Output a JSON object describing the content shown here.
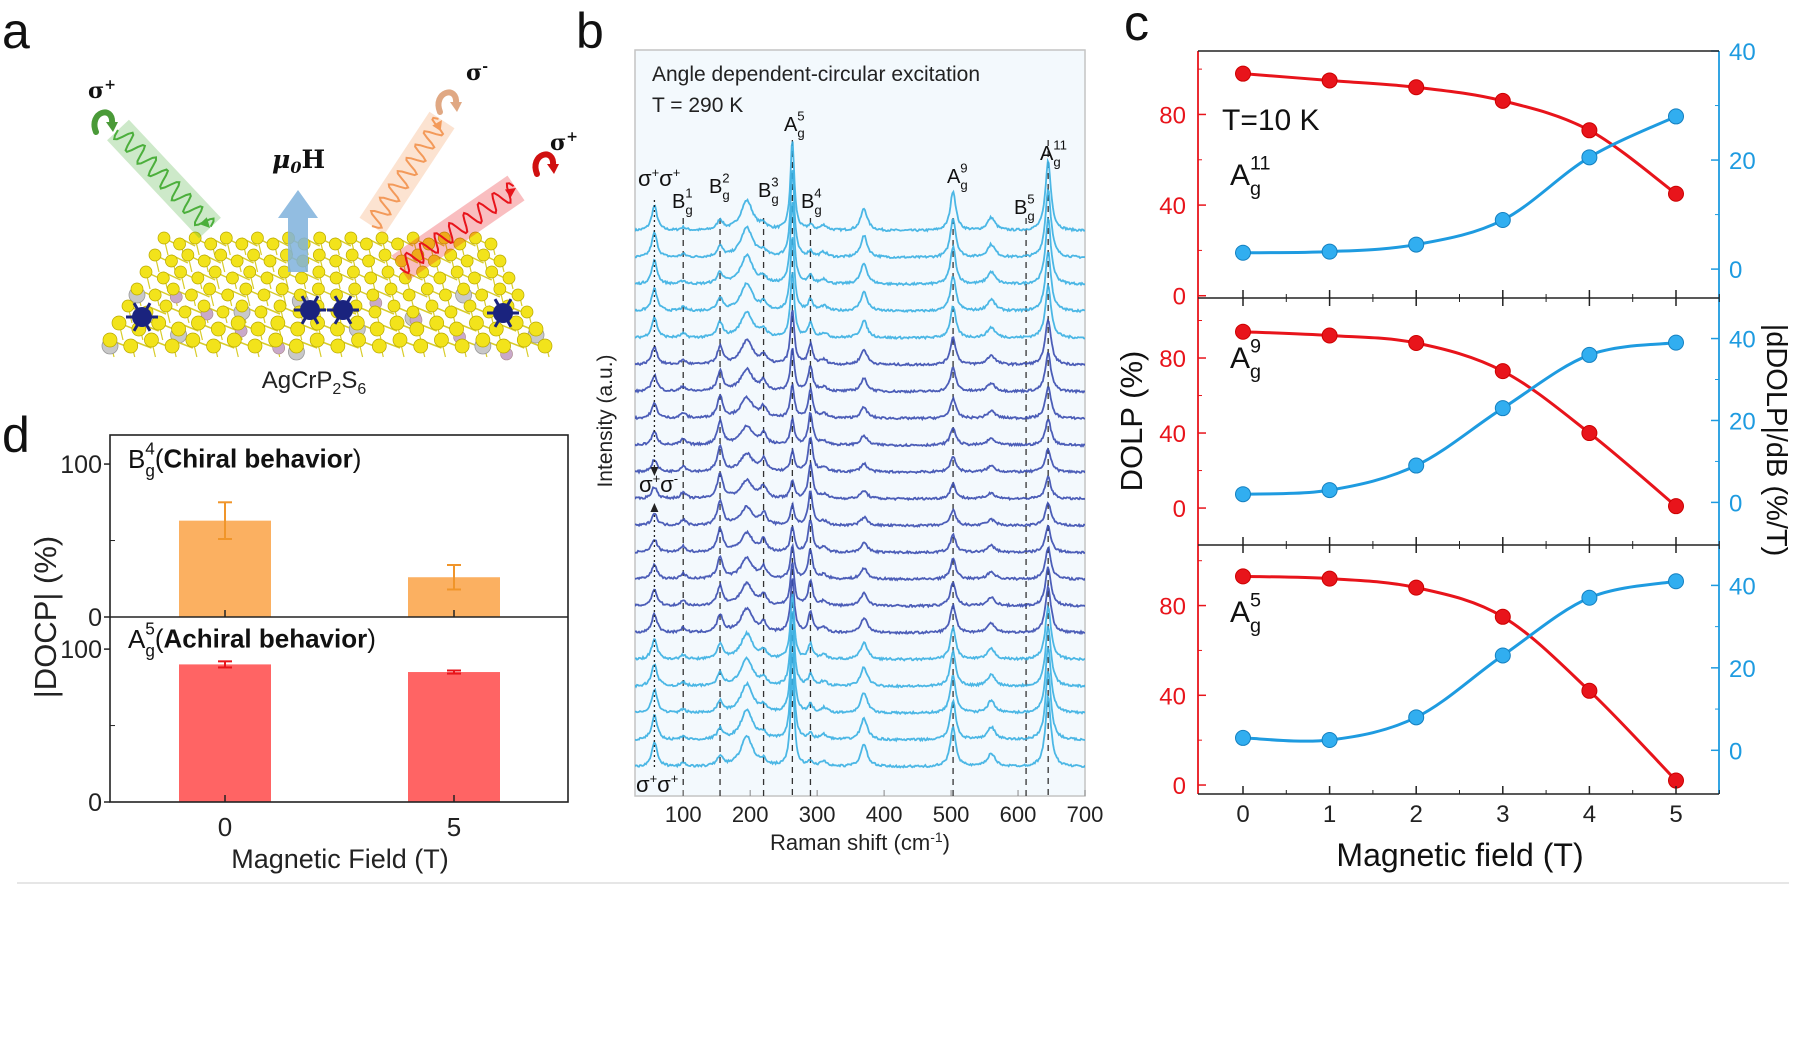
{
  "panel_labels": {
    "a": "a",
    "b": "b",
    "c": "c",
    "d": "d"
  },
  "panel_a": {
    "formula": [
      {
        "t": "AgCrP"
      },
      {
        "t": "2",
        "sub": true
      },
      {
        "t": "S"
      },
      {
        "t": "6",
        "sub": true
      }
    ],
    "field_label": {
      "mu": "μ",
      "sub": "0",
      "H": "H"
    },
    "beams": [
      {
        "label": "σ",
        "sup": "+",
        "color": "#4caf3c"
      },
      {
        "label": "σ",
        "sup": "-",
        "color": "#f39a5a"
      },
      {
        "label": "σ",
        "sup": "+",
        "color": "#e8141b"
      }
    ],
    "atom_colors": {
      "S": "#f2e31b",
      "Cr": "#1a237e",
      "Ag": "#c8c8c8",
      "P": "#c9a9c9"
    }
  },
  "chart_data": [
    {
      "id": "b",
      "type": "line",
      "title": "",
      "annotation": [
        "Angle dependent-circular excitation",
        "T = 290 K"
      ],
      "xlabel": "Raman shift (cm",
      "xlabel_sup": "-1",
      "xlabel_end": ")",
      "ylabel": "Intensity (a.u.)",
      "xlim": [
        28,
        700
      ],
      "xticks": [
        100,
        200,
        300,
        400,
        500,
        600,
        700
      ],
      "trace_count": 21,
      "polarization_labels": {
        "top": {
          "a": "σ",
          "sa": "+",
          "b": "σ",
          "sb": "+"
        },
        "middle": {
          "a": "σ",
          "sa": "+",
          "b": "σ",
          "sb": "-"
        },
        "bottom": {
          "a": "σ",
          "sa": "+",
          "b": "σ",
          "sb": "+"
        }
      },
      "peaks": [
        {
          "base": "B",
          "sub": "g",
          "sup": "1",
          "x": 100
        },
        {
          "base": "B",
          "sub": "g",
          "sup": "2",
          "x": 155
        },
        {
          "base": "B",
          "sub": "g",
          "sup": "3",
          "x": 220
        },
        {
          "base": "A",
          "sub": "g",
          "sup": "5",
          "x": 263
        },
        {
          "base": "B",
          "sub": "g",
          "sup": "4",
          "x": 290
        },
        {
          "base": "A",
          "sub": "g",
          "sup": "9",
          "x": 503
        },
        {
          "base": "B",
          "sub": "g",
          "sup": "5",
          "x": 612
        },
        {
          "base": "A",
          "sub": "g",
          "sup": "11",
          "x": 645
        }
      ],
      "colors": {
        "co_circular": "#38afe2",
        "cross_circular": "#3a4cb0"
      }
    },
    {
      "id": "c",
      "type": "line",
      "title": "",
      "annotation": "T=10 K",
      "xlabel": "Magnetic field (T)",
      "ylabel_left": "DOLP (%)",
      "ylabel_right": "|dDOLP|/dB (%/T)",
      "x": [
        0,
        1,
        2,
        3,
        4,
        5
      ],
      "colors": {
        "left": "#e8141b",
        "right": "#1e9be0"
      },
      "panels": [
        {
          "mode": {
            "base": "A",
            "sub": "g",
            "sup": "11"
          },
          "ylim_left": [
            -1,
            108
          ],
          "yticks_left": [
            0,
            40,
            80
          ],
          "ylim_right": [
            -5.3,
            40
          ],
          "yticks_right": [
            0,
            20,
            40
          ],
          "dolp": [
            98,
            95,
            92,
            86,
            73,
            45
          ],
          "ddolp": [
            3,
            3.2,
            4.5,
            9,
            20.5,
            28
          ]
        },
        {
          "mode": {
            "base": "A",
            "sub": "g",
            "sup": "9"
          },
          "ylim_left": [
            -19.7,
            112
          ],
          "yticks_left": [
            0,
            40,
            80
          ],
          "ylim_right": [
            -10.4,
            49.9
          ],
          "yticks_right": [
            0,
            20,
            40
          ],
          "dolp": [
            94,
            92,
            88,
            73,
            40,
            1
          ],
          "ddolp": [
            2,
            3,
            9,
            23,
            36,
            39
          ]
        },
        {
          "mode": {
            "base": "A",
            "sub": "g",
            "sup": "5"
          },
          "ylim_left": [
            -4,
            107
          ],
          "yticks_left": [
            0,
            40,
            80
          ],
          "ylim_right": [
            -10.6,
            49.8
          ],
          "yticks_right": [
            0,
            20,
            40
          ],
          "dolp": [
            93,
            92,
            88,
            75,
            42,
            2
          ],
          "ddolp": [
            3,
            2.5,
            8,
            23,
            37,
            41
          ]
        }
      ]
    },
    {
      "id": "d",
      "type": "bar",
      "title": "",
      "xlabel": "Magnetic Field (T)",
      "ylabel": "|DOCP| (%)",
      "categories": [
        "0",
        "5"
      ],
      "panels": [
        {
          "mode": {
            "base": "B",
            "sub": "g",
            "sup": "4"
          },
          "caption": "Chiral behavior",
          "values": [
            63,
            26
          ],
          "errors": [
            12,
            8
          ],
          "ylim": [
            0,
            119
          ],
          "yticks": [
            0,
            100
          ],
          "color": "#fbb061",
          "error_color": "#f0952a"
        },
        {
          "mode": {
            "base": "A",
            "sub": "g",
            "sup": "5"
          },
          "caption": "Achiral behavior",
          "values": [
            90,
            85
          ],
          "errors": [
            2,
            1
          ],
          "ylim": [
            0,
            121
          ],
          "yticks": [
            0,
            100
          ],
          "color": "#ff6464",
          "error_color": "#e8141b"
        }
      ]
    }
  ]
}
